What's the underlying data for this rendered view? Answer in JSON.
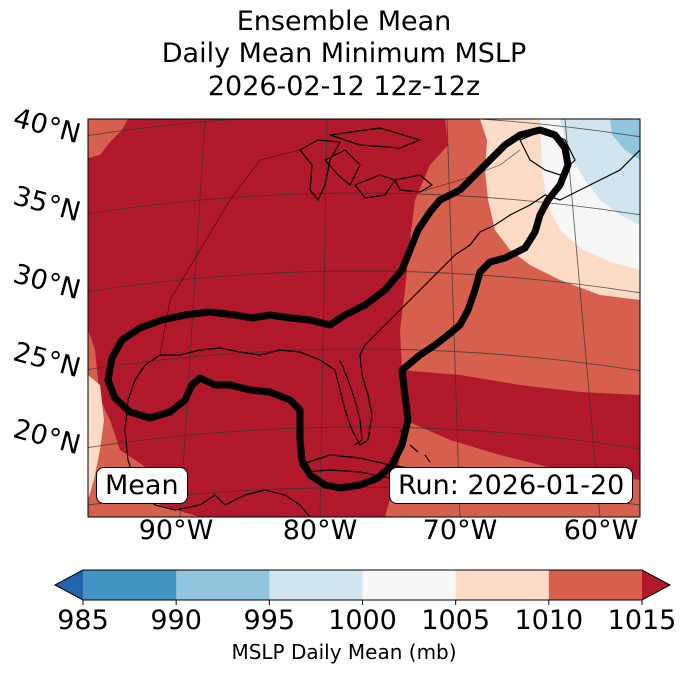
{
  "title": {
    "line1": "Ensemble Mean",
    "line2": "Daily Mean Minimum MSLP",
    "line3": "2026-02-12 12z-12z"
  },
  "lat_labels": [
    "40°N",
    "35°N",
    "30°N",
    "25°N",
    "20°N"
  ],
  "lon_labels": [
    "90°W",
    "80°W",
    "70°W",
    "60°W"
  ],
  "mean_box": "Mean",
  "run_box": "Run: 2026-01-20",
  "colorbar": {
    "ticks": [
      "985",
      "990",
      "995",
      "1000",
      "1005",
      "1010",
      "1015"
    ],
    "colors": [
      "#4393c3",
      "#92c5de",
      "#d1e5f0",
      "#f7f7f7",
      "#fddbc7",
      "#d6604d"
    ],
    "under_color": "#2166ac",
    "over_color": "#b2182b",
    "label": "MSLP Daily Mean (mb)"
  },
  "map_colors": {
    "c1015": "#b2182b",
    "c1010": "#d6604d",
    "c1005": "#fddbc7",
    "c1000": "#f7f7f7",
    "c995": "#d1e5f0",
    "c990": "#92c5de"
  }
}
